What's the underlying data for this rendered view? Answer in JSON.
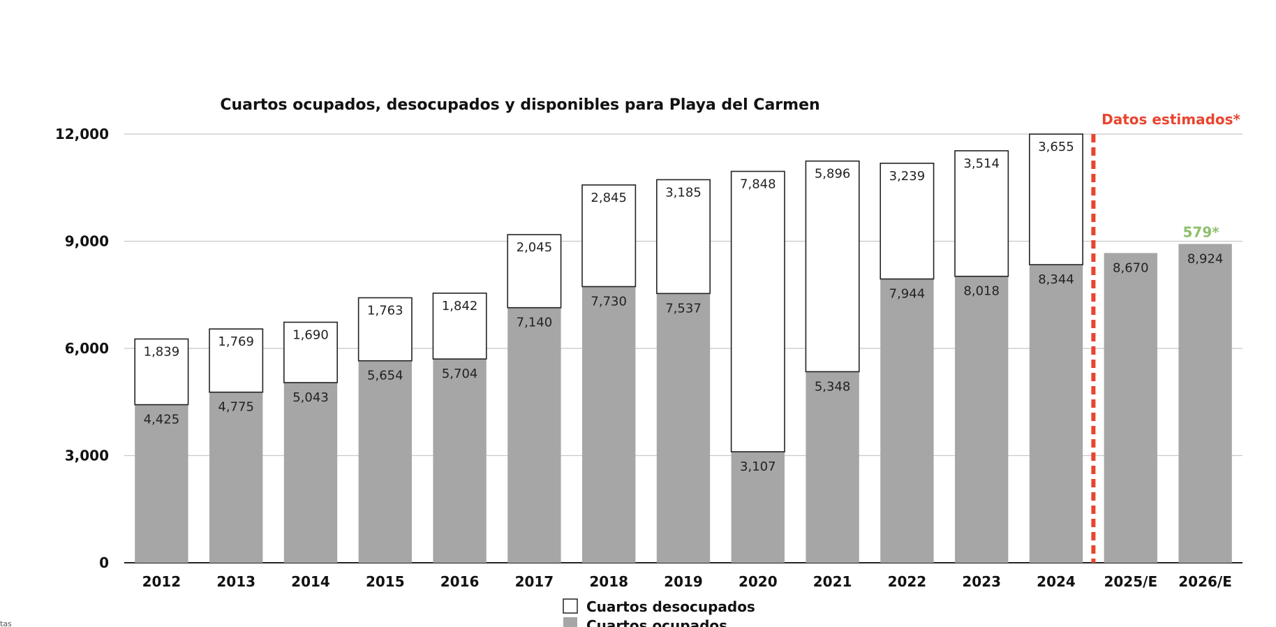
{
  "chart_data": {
    "type": "bar",
    "stacked": true,
    "title": "Cuartos ocupados, desocupados y disponibles para Playa del Carmen",
    "xlabel": "",
    "ylabel": "",
    "ylim": [
      0,
      12000
    ],
    "yticks": [
      "0",
      "3,000",
      "6,000",
      "9,000",
      "12,000"
    ],
    "categories": [
      "2012",
      "2013",
      "2014",
      "2015",
      "2016",
      "2017",
      "2018",
      "2019",
      "2020",
      "2021",
      "2022",
      "2023",
      "2024",
      "2025/E",
      "2026/E"
    ],
    "series": [
      {
        "name": "Cuartos ocupados",
        "color": "#a6a6a6",
        "values": [
          4425,
          4775,
          5043,
          5654,
          5704,
          7140,
          7730,
          7537,
          3107,
          5348,
          7944,
          8018,
          8344,
          8670,
          8924
        ],
        "labels": [
          "4,425",
          "4,775",
          "5,043",
          "5,654",
          "5,704",
          "7,140",
          "7,730",
          "7,537",
          "3,107",
          "5,348",
          "7,944",
          "8,018",
          "8,344",
          "8,670",
          "8,924"
        ]
      },
      {
        "name": "Cuartos desocupados",
        "color": "#ffffff",
        "values": [
          1839,
          1769,
          1690,
          1763,
          1842,
          2045,
          2845,
          3185,
          7848,
          5896,
          3239,
          3514,
          3655,
          null,
          null
        ],
        "labels": [
          "1,839",
          "1,769",
          "1,690",
          "1,763",
          "1,842",
          "2,045",
          "2,845",
          "3,185",
          "7,848",
          "5,896",
          "3,239",
          "3,514",
          "3,655",
          "",
          ""
        ]
      }
    ],
    "grid": true,
    "legend_position": "bottom-center",
    "annotations": {
      "estimated_label": "Datos estimados*",
      "estimated_divider_after": "2024",
      "estimated_color": "#e8452f",
      "delta_label": "579*",
      "delta_category": "2026/E",
      "delta_color": "#8ec06c"
    }
  },
  "footer": {
    "source_fragment": "tas"
  }
}
